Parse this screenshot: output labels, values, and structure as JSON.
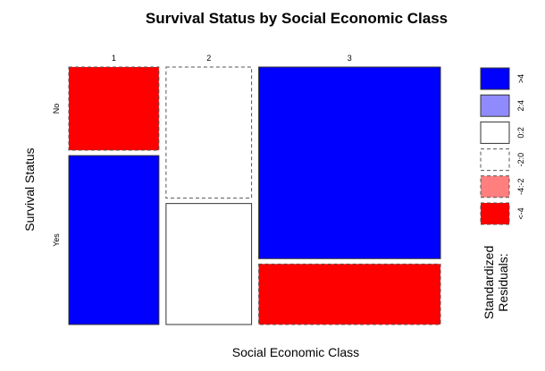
{
  "chart_data": {
    "type": "mosaic",
    "title": "Survival Status by Social Economic Class",
    "xlabel": "Social Economic Class",
    "ylabel": "Survival Status",
    "categories": [
      "1",
      "2",
      "3"
    ],
    "row_categories": [
      "No",
      "Yes"
    ],
    "column_widths": [
      0.236,
      0.224,
      0.476
    ],
    "cells": [
      {
        "column": "1",
        "row": "No",
        "fraction": 0.33,
        "residual_band": "<-4"
      },
      {
        "column": "1",
        "row": "Yes",
        "fraction": 0.67,
        "residual_band": ">4"
      },
      {
        "column": "2",
        "row": "No",
        "fraction": 0.52,
        "residual_band": "-2:0"
      },
      {
        "column": "2",
        "row": "Yes",
        "fraction": 0.48,
        "residual_band": "0:2"
      },
      {
        "column": "3",
        "row": "No",
        "fraction": 0.76,
        "residual_band": ">4"
      },
      {
        "column": "3",
        "row": "Yes",
        "fraction": 0.24,
        "residual_band": "<-4"
      }
    ],
    "legend": {
      "title_lines": [
        "Standardized",
        "Residuals:"
      ],
      "placement": "right",
      "entries": [
        {
          "label": ">4",
          "fill": "#0000FF",
          "dashed": false
        },
        {
          "label": "2:4",
          "fill": "#8F8BFF",
          "dashed": false
        },
        {
          "label": "0:2",
          "fill": "#FFFFFF",
          "dashed": false
        },
        {
          "label": "-2:0",
          "fill": "#FFFFFF",
          "dashed": true
        },
        {
          "label": "-4:-2",
          "fill": "#FF7F7F",
          "dashed": true
        },
        {
          "label": "<-4",
          "fill": "#FF0000",
          "dashed": true
        }
      ]
    }
  }
}
